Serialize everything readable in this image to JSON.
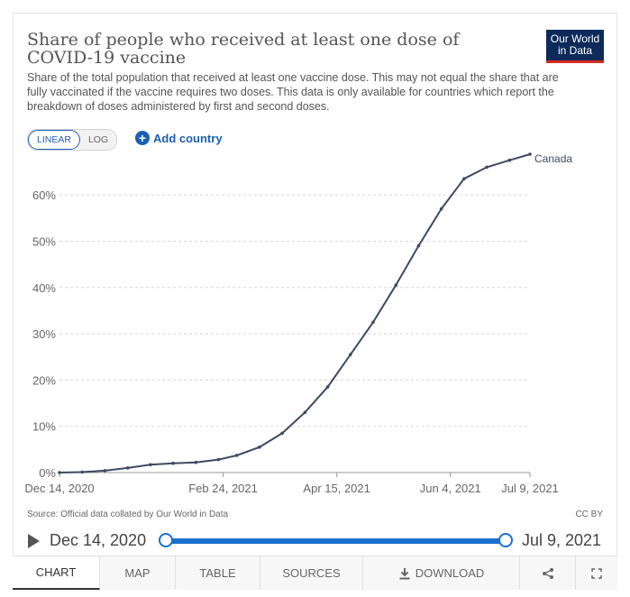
{
  "header": {
    "title": "Share of people who received at least one dose of COVID-19 vaccine",
    "subtitle": "Share of the total population that received at least one vaccine dose. This may not equal the share that are fully vaccinated if the vaccine requires two doses. This data is only available for countries which report the breakdown of doses administered by first and second doses.",
    "logo_line1": "Our World",
    "logo_line2": "in Data"
  },
  "controls": {
    "linear_label": "LINEAR",
    "log_label": "LOG",
    "scale_selected": "LINEAR",
    "add_country_label": "Add country"
  },
  "footer": {
    "source": "Source: Official data collated by Our World in Data",
    "license": "CC BY"
  },
  "timeline": {
    "start": "Dec 14, 2020",
    "end": "Jul 9, 2021"
  },
  "tabs": [
    {
      "label": "CHART",
      "active": true
    },
    {
      "label": "MAP",
      "active": false
    },
    {
      "label": "TABLE",
      "active": false
    },
    {
      "label": "SOURCES",
      "active": false
    },
    {
      "label": "DOWNLOAD",
      "active": false
    }
  ],
  "icons": {
    "download": "download-icon",
    "share": "share-icon",
    "fullscreen": "fullscreen-icon",
    "play": "play-icon",
    "add": "plus-circle-icon"
  },
  "colors": {
    "line": "#3d4a63",
    "accent": "#1a5fb4",
    "logo_bg": "#0d2a5a",
    "logo_bar": "#d42b21"
  },
  "chart_data": {
    "type": "line",
    "title": "Share of people who received at least one dose of COVID-19 vaccine",
    "xlabel": "",
    "ylabel": "",
    "x_tick_labels": [
      "Dec 14, 2020",
      "Feb 24, 2021",
      "Apr 15, 2021",
      "Jun 4, 2021",
      "Jul 9, 2021"
    ],
    "x_tick_dates": [
      "2020-12-14",
      "2021-02-24",
      "2021-04-15",
      "2021-06-04",
      "2021-07-09"
    ],
    "y_tick_labels": [
      "0%",
      "10%",
      "20%",
      "30%",
      "40%",
      "50%",
      "60%"
    ],
    "y_ticks": [
      0,
      10,
      20,
      30,
      40,
      50,
      60
    ],
    "ylim": [
      0,
      69
    ],
    "xlim": [
      "2020-12-14",
      "2021-07-09"
    ],
    "grid": "horizontal dashed",
    "series": [
      {
        "name": "Canada",
        "points": [
          [
            "2020-12-14",
            0.0
          ],
          [
            "2020-12-24",
            0.1
          ],
          [
            "2021-01-03",
            0.4
          ],
          [
            "2021-01-13",
            1.0
          ],
          [
            "2021-01-23",
            1.7
          ],
          [
            "2021-02-02",
            2.0
          ],
          [
            "2021-02-12",
            2.2
          ],
          [
            "2021-02-22",
            2.8
          ],
          [
            "2021-03-02",
            3.7
          ],
          [
            "2021-03-12",
            5.5
          ],
          [
            "2021-03-22",
            8.5
          ],
          [
            "2021-04-01",
            13.0
          ],
          [
            "2021-04-11",
            18.5
          ],
          [
            "2021-04-21",
            25.5
          ],
          [
            "2021-05-01",
            32.5
          ],
          [
            "2021-05-11",
            40.5
          ],
          [
            "2021-05-21",
            49.0
          ],
          [
            "2021-05-31",
            57.0
          ],
          [
            "2021-06-10",
            63.5
          ],
          [
            "2021-06-20",
            66.0
          ],
          [
            "2021-06-30",
            67.5
          ],
          [
            "2021-07-09",
            68.8
          ]
        ]
      }
    ]
  }
}
